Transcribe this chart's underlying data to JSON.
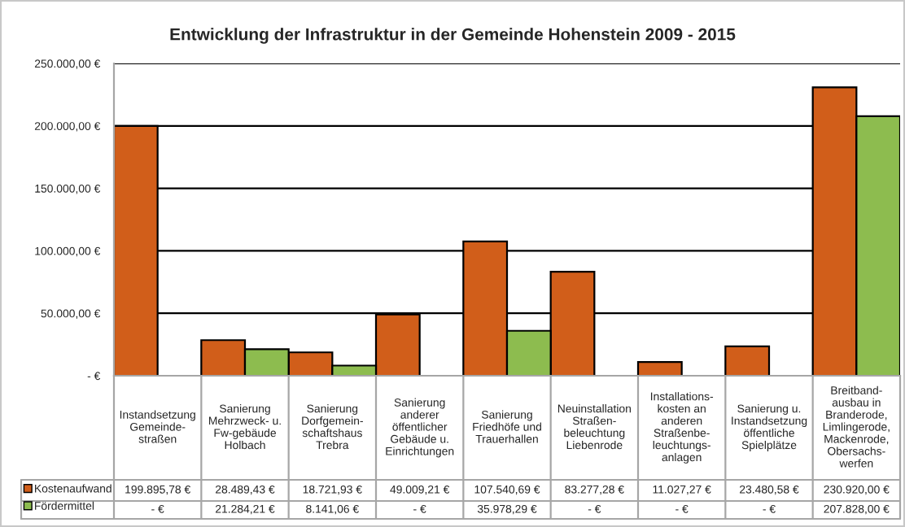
{
  "chart_data": {
    "type": "bar",
    "title": "Entwicklung der Infrastruktur in der Gemeinde Hohenstein 2009 - 2015",
    "categories": [
      "Instandsetzung\nGemeinde-\nstraßen",
      "Sanierung\nMehrzweck- u.\nFw-gebäude\nHolbach",
      "Sanierung\nDorfgemein-\nschaftshaus\nTrebra",
      "Sanierung\nanderer\nöffentlicher\nGebäude u.\nEinrichtungen",
      "Sanierung\nFriedhöfe und\nTrauerhallen",
      "Neuinstallation\nStraßen-\nbeleuchtung\nLiebenrode",
      "Installations-\nkosten an\nanderen\nStraßenbe-\nleuchtungs-\nanlagen",
      "Sanierung u.\nInstandsetzung\nöffentliche\nSpielplätze",
      "Breitband-\nausbau in\nBranderode,\nLimlingerode,\nMackenrode,\nObersachs-\nwerfen"
    ],
    "series": [
      {
        "name": "Kostenaufwand",
        "color": "#d15e1a",
        "values": [
          199895.78,
          28489.43,
          18721.93,
          49009.21,
          107540.69,
          83277.28,
          11027.27,
          23480.58,
          230920.0
        ],
        "value_labels": [
          "199.895,78 €",
          "28.489,43 €",
          "18.721,93 €",
          "49.009,21 €",
          "107.540,69 €",
          "83.277,28 €",
          "11.027,27 €",
          "23.480,58 €",
          "230.920,00 €"
        ]
      },
      {
        "name": "Fördermittel",
        "color": "#8dbc4f",
        "values": [
          0,
          21284.21,
          8141.06,
          0,
          35978.29,
          0,
          0,
          0,
          207828.0
        ],
        "value_labels": [
          "- €",
          "21.284,21 €",
          "8.141,06 €",
          "- €",
          "35.978,29 €",
          "- €",
          "- €",
          "- €",
          "207.828,00 €"
        ]
      }
    ],
    "ylim": [
      0,
      250000
    ],
    "yticks": [
      {
        "value": 0,
        "label": "- €"
      },
      {
        "value": 50000,
        "label": "50.000,00 €"
      },
      {
        "value": 100000,
        "label": "100.000,00 €"
      },
      {
        "value": 150000,
        "label": "150.000,00 €"
      },
      {
        "value": 200000,
        "label": "200.000,00 €"
      },
      {
        "value": 250000,
        "label": "250.000,00 €"
      }
    ],
    "grid": "y",
    "legend": "bottom left"
  }
}
